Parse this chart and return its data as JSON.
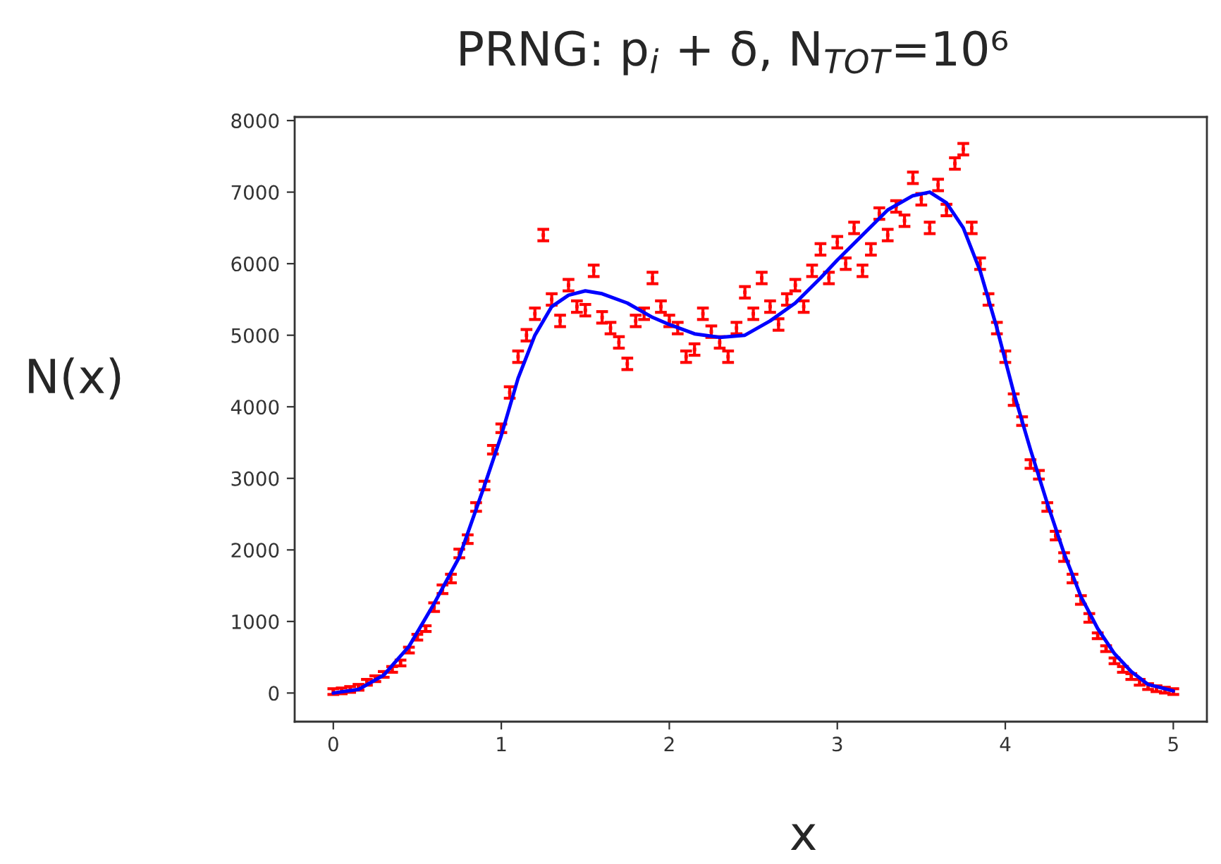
{
  "chart_data": {
    "type": "scatter",
    "title": "PRNG: p$_{i}$ + δ, N$_{TOT}$=10⁶",
    "xlabel": "x",
    "ylabel": "N(x)",
    "xlim": [
      -0.23,
      5.2
    ],
    "xticks": [
      0,
      1,
      2,
      3,
      4,
      5
    ],
    "ylim": [
      -400,
      8050
    ],
    "yticks": [
      0,
      1000,
      2000,
      3000,
      4000,
      5000,
      6000,
      7000,
      8000
    ],
    "grid": false,
    "legend": false,
    "series": [
      {
        "color": "#ff0000",
        "x": [
          0.0,
          0.05,
          0.1,
          0.15,
          0.2,
          0.25,
          0.3,
          0.35,
          0.4,
          0.45,
          0.5,
          0.55,
          0.6,
          0.65,
          0.7,
          0.75,
          0.8,
          0.85,
          0.9,
          0.95,
          1.0,
          1.05,
          1.1,
          1.15,
          1.2,
          1.25,
          1.3,
          1.35,
          1.4,
          1.45,
          1.5,
          1.55,
          1.6,
          1.65,
          1.7,
          1.75,
          1.8,
          1.85,
          1.9,
          1.95,
          2.0,
          2.05,
          2.1,
          2.15,
          2.2,
          2.25,
          2.3,
          2.35,
          2.4,
          2.45,
          2.5,
          2.55,
          2.6,
          2.65,
          2.7,
          2.75,
          2.8,
          2.85,
          2.9,
          2.95,
          3.0,
          3.05,
          3.1,
          3.15,
          3.2,
          3.25,
          3.3,
          3.35,
          3.4,
          3.45,
          3.5,
          3.55,
          3.6,
          3.65,
          3.7,
          3.75,
          3.8,
          3.85,
          3.9,
          3.95,
          4.0,
          4.05,
          4.1,
          4.15,
          4.2,
          4.25,
          4.3,
          4.35,
          4.4,
          4.45,
          4.5,
          4.55,
          4.6,
          4.65,
          4.7,
          4.75,
          4.8,
          4.85,
          4.9,
          4.95,
          5.0
        ],
        "values": [
          20,
          30,
          50,
          80,
          150,
          200,
          260,
          330,
          420,
          600,
          780,
          900,
          1200,
          1450,
          1600,
          1950,
          2150,
          2600,
          2900,
          3400,
          3700,
          4200,
          4700,
          5000,
          5300,
          6400,
          5500,
          5200,
          5700,
          5400,
          5350,
          5900,
          5250,
          5100,
          4900,
          4600,
          5200,
          5300,
          5800,
          5400,
          5200,
          5100,
          4700,
          4800,
          5300,
          5050,
          4900,
          4700,
          5100,
          5600,
          5300,
          5800,
          5400,
          5150,
          5500,
          5700,
          5400,
          5900,
          6200,
          5800,
          6300,
          6000,
          6500,
          5900,
          6200,
          6700,
          6400,
          6800,
          6600,
          7200,
          6900,
          6500,
          7100,
          6750,
          7400,
          7600,
          6500,
          6000,
          5500,
          5100,
          4700,
          4100,
          3800,
          3200,
          3050,
          2600,
          2200,
          1900,
          1600,
          1300,
          1050,
          800,
          620,
          450,
          330,
          230,
          150,
          90,
          60,
          40,
          20
        ],
        "errors": [
          40,
          40,
          40,
          40,
          40,
          40,
          40,
          40,
          40,
          40,
          40,
          40,
          60,
          60,
          60,
          60,
          60,
          60,
          60,
          60,
          60,
          80,
          80,
          80,
          80,
          80,
          80,
          80,
          80,
          80,
          80,
          80,
          80,
          80,
          80,
          80,
          80,
          80,
          80,
          80,
          80,
          80,
          80,
          80,
          80,
          80,
          80,
          80,
          80,
          80,
          80,
          80,
          80,
          80,
          80,
          80,
          80,
          80,
          80,
          80,
          80,
          80,
          80,
          80,
          80,
          80,
          80,
          80,
          80,
          80,
          80,
          80,
          80,
          80,
          80,
          80,
          80,
          80,
          80,
          80,
          80,
          80,
          60,
          60,
          60,
          60,
          60,
          60,
          60,
          60,
          60,
          40,
          40,
          40,
          40,
          40,
          40,
          40,
          40,
          40,
          40
        ]
      },
      {
        "type": "line",
        "color": "#0000ff",
        "line_style": "solid",
        "x": [
          0.0,
          0.15,
          0.3,
          0.45,
          0.6,
          0.75,
          0.9,
          1.0,
          1.1,
          1.2,
          1.3,
          1.4,
          1.5,
          1.6,
          1.75,
          1.9,
          2.0,
          2.15,
          2.3,
          2.45,
          2.6,
          2.75,
          2.9,
          3.0,
          3.15,
          3.3,
          3.45,
          3.55,
          3.65,
          3.75,
          3.85,
          3.95,
          4.05,
          4.15,
          4.25,
          4.35,
          4.45,
          4.55,
          4.65,
          4.75,
          4.85,
          5.0
        ],
        "values": [
          0,
          50,
          250,
          650,
          1250,
          1900,
          2900,
          3600,
          4400,
          5000,
          5400,
          5560,
          5620,
          5580,
          5450,
          5250,
          5150,
          5020,
          4970,
          5000,
          5200,
          5450,
          5800,
          6050,
          6400,
          6750,
          6950,
          7000,
          6850,
          6500,
          5900,
          5100,
          4200,
          3400,
          2650,
          1950,
          1350,
          900,
          550,
          300,
          120,
          30
        ]
      }
    ]
  }
}
